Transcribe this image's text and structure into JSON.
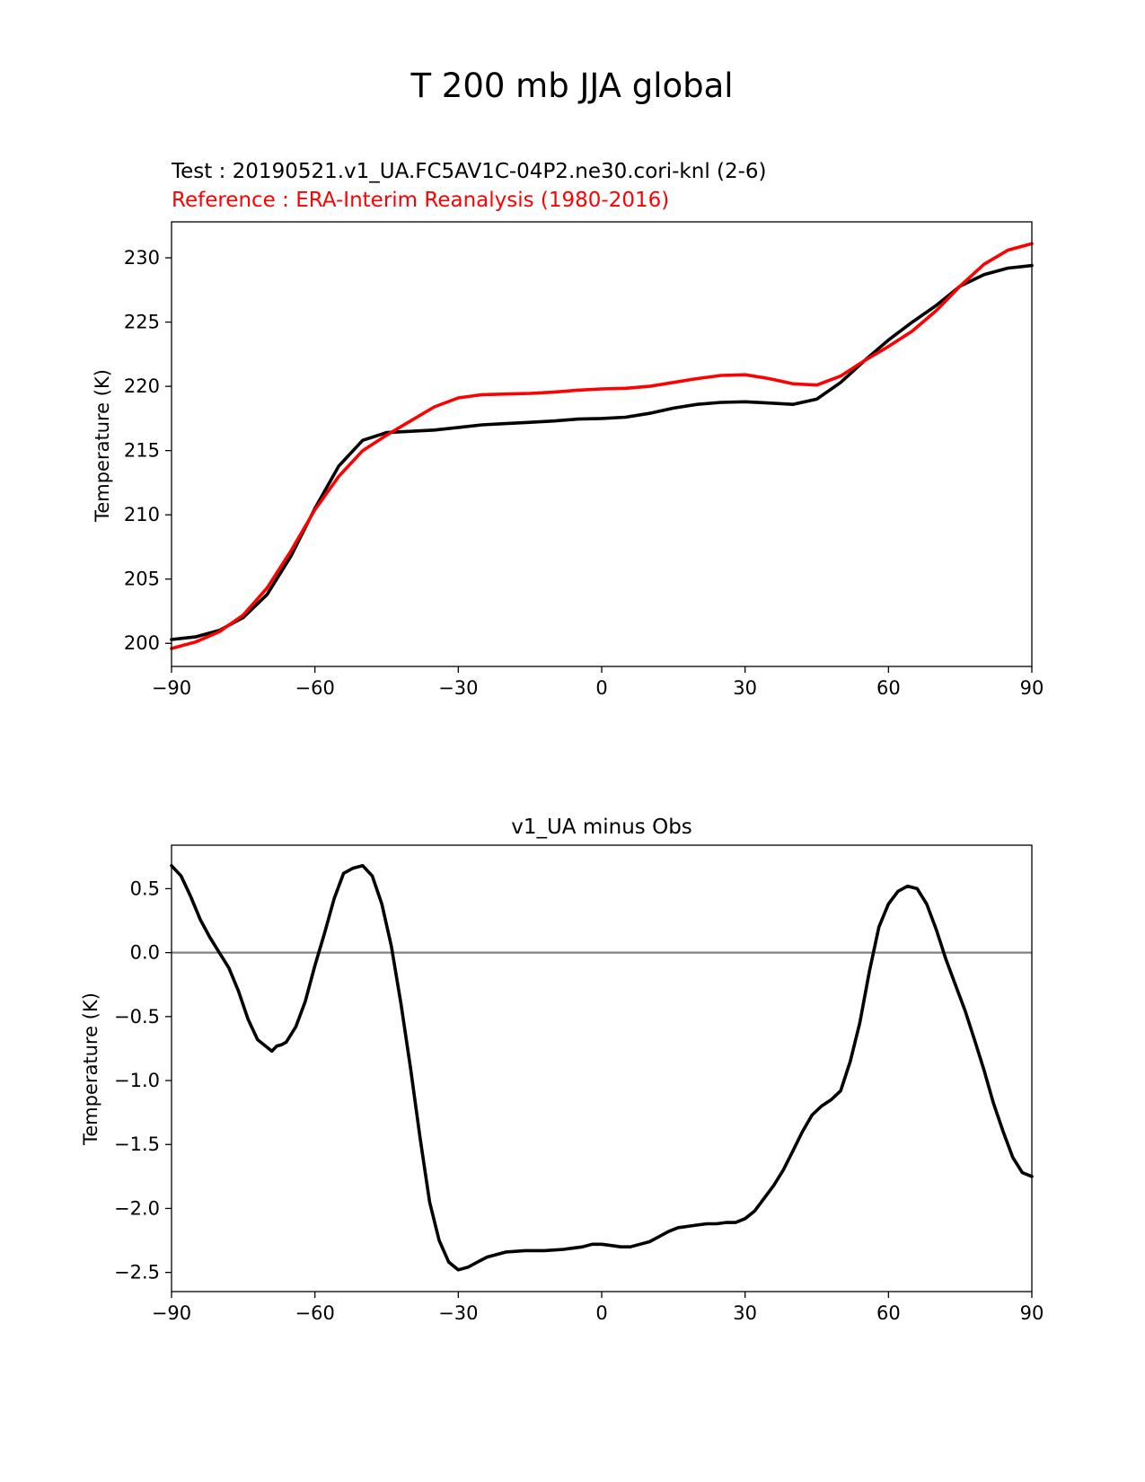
{
  "figure": {
    "title": "T 200 mb JJA global"
  },
  "chart_data": [
    {
      "type": "line",
      "test_label": "Test : 20190521.v1_UA.FC5AV1C-04P2.ne30.cori-knl (2-6)",
      "reference_label": "Reference : ERA-Interim Reanalysis (1980-2016)",
      "xlabel": "",
      "ylabel": "Temperature (K)",
      "xlim": [
        -90,
        90
      ],
      "ylim": [
        198.2,
        232.8
      ],
      "xticks": [
        -90,
        -60,
        -30,
        0,
        30,
        60,
        90
      ],
      "xtick_labels": [
        "−90",
        "−60",
        "−30",
        "0",
        "30",
        "60",
        "90"
      ],
      "yticks": [
        200,
        205,
        210,
        215,
        220,
        225,
        230
      ],
      "ytick_labels": [
        "200",
        "205",
        "210",
        "215",
        "220",
        "225",
        "230"
      ],
      "colors": {
        "test": "#000000",
        "reference": "#ff0000"
      },
      "series": [
        {
          "name": "Test",
          "color": "#000000",
          "x": [
            -90,
            -85,
            -80,
            -75,
            -70,
            -65,
            -60,
            -55,
            -50,
            -45,
            -40,
            -35,
            -30,
            -25,
            -20,
            -15,
            -10,
            -5,
            0,
            5,
            10,
            15,
            20,
            25,
            30,
            35,
            40,
            45,
            50,
            55,
            60,
            65,
            70,
            75,
            80,
            85,
            90
          ],
          "y": [
            200.3,
            200.5,
            201.0,
            202.0,
            203.8,
            206.8,
            210.5,
            213.8,
            215.8,
            216.4,
            216.5,
            216.6,
            216.8,
            217.0,
            217.1,
            217.2,
            217.3,
            217.45,
            217.5,
            217.6,
            217.9,
            218.3,
            218.6,
            218.75,
            218.8,
            218.7,
            218.6,
            219.0,
            220.3,
            222.0,
            223.6,
            225.0,
            226.3,
            227.8,
            228.7,
            229.2,
            229.4
          ]
        },
        {
          "name": "Reference",
          "color": "#ff0000",
          "x": [
            -90,
            -85,
            -80,
            -75,
            -70,
            -65,
            -60,
            -55,
            -50,
            -45,
            -40,
            -35,
            -30,
            -25,
            -20,
            -15,
            -10,
            -5,
            0,
            5,
            10,
            15,
            20,
            25,
            30,
            35,
            40,
            45,
            50,
            55,
            60,
            65,
            70,
            75,
            80,
            85,
            90
          ],
          "y": [
            199.6,
            200.1,
            200.9,
            202.2,
            204.3,
            207.2,
            210.4,
            213.0,
            215.0,
            216.2,
            217.3,
            218.4,
            219.1,
            219.35,
            219.4,
            219.45,
            219.55,
            219.7,
            219.8,
            219.85,
            220.0,
            220.3,
            220.6,
            220.85,
            220.9,
            220.6,
            220.2,
            220.1,
            220.8,
            222.0,
            223.1,
            224.3,
            225.9,
            227.8,
            229.5,
            230.6,
            231.1
          ]
        }
      ]
    },
    {
      "type": "line",
      "title": "v1_UA minus Obs",
      "xlabel": "",
      "ylabel": "Temperature (K)",
      "xlim": [
        -90,
        90
      ],
      "ylim": [
        -2.65,
        0.84
      ],
      "xticks": [
        -90,
        -60,
        -30,
        0,
        30,
        60,
        90
      ],
      "xtick_labels": [
        "−90",
        "−60",
        "−30",
        "0",
        "30",
        "60",
        "90"
      ],
      "yticks": [
        0.5,
        0.0,
        -0.5,
        -1.0,
        -1.5,
        -2.0,
        -2.5
      ],
      "ytick_labels": [
        "0.5",
        "0.0",
        "−0.5",
        "−1.0",
        "−1.5",
        "−2.0",
        "−2.5"
      ],
      "zero_line": {
        "value": 0,
        "color": "#808080"
      },
      "series": [
        {
          "name": "v1_UA minus Obs",
          "color": "#000000",
          "x": [
            -90,
            -88,
            -86,
            -84,
            -82,
            -80,
            -78,
            -76,
            -74,
            -72,
            -70,
            -69,
            -68,
            -67,
            -66,
            -64,
            -62,
            -60,
            -58,
            -56,
            -54,
            -52,
            -50,
            -48,
            -46,
            -44,
            -42,
            -40,
            -38,
            -36,
            -34,
            -32,
            -30,
            -28,
            -26,
            -24,
            -20,
            -16,
            -12,
            -8,
            -4,
            -2,
            0,
            2,
            4,
            6,
            8,
            10,
            12,
            14,
            16,
            18,
            20,
            22,
            24,
            26,
            28,
            30,
            32,
            34,
            36,
            38,
            40,
            42,
            44,
            46,
            48,
            50,
            52,
            54,
            56,
            58,
            60,
            62,
            64,
            66,
            68,
            70,
            72,
            74,
            76,
            78,
            80,
            82,
            84,
            86,
            88,
            90
          ],
          "y": [
            0.68,
            0.6,
            0.44,
            0.26,
            0.12,
            0.0,
            -0.12,
            -0.3,
            -0.52,
            -0.68,
            -0.74,
            -0.77,
            -0.73,
            -0.72,
            -0.7,
            -0.58,
            -0.38,
            -0.1,
            0.15,
            0.42,
            0.62,
            0.66,
            0.68,
            0.6,
            0.38,
            0.05,
            -0.4,
            -0.9,
            -1.45,
            -1.95,
            -2.25,
            -2.42,
            -2.48,
            -2.46,
            -2.42,
            -2.38,
            -2.34,
            -2.33,
            -2.33,
            -2.32,
            -2.3,
            -2.28,
            -2.28,
            -2.29,
            -2.3,
            -2.3,
            -2.28,
            -2.26,
            -2.22,
            -2.18,
            -2.15,
            -2.14,
            -2.13,
            -2.12,
            -2.12,
            -2.11,
            -2.11,
            -2.08,
            -2.02,
            -1.92,
            -1.82,
            -1.7,
            -1.55,
            -1.4,
            -1.27,
            -1.2,
            -1.15,
            -1.08,
            -0.85,
            -0.55,
            -0.15,
            0.2,
            0.38,
            0.48,
            0.52,
            0.5,
            0.38,
            0.18,
            -0.05,
            -0.25,
            -0.45,
            -0.68,
            -0.92,
            -1.18,
            -1.4,
            -1.6,
            -1.72,
            -1.75
          ]
        }
      ]
    }
  ]
}
